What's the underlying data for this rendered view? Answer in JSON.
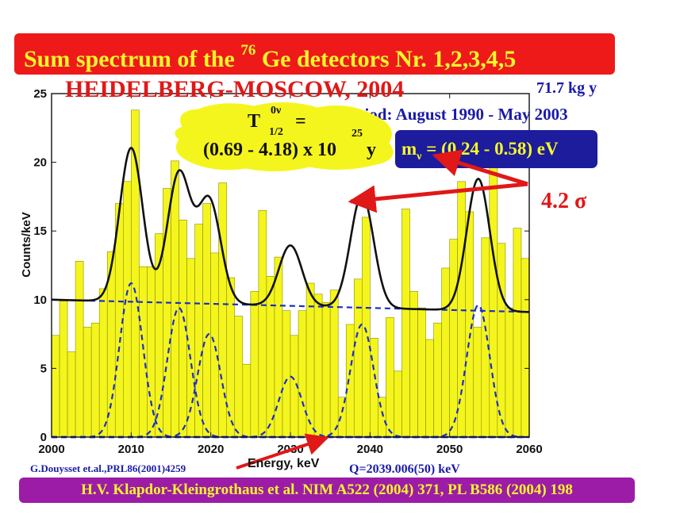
{
  "header": {
    "title_prefix": "Sum spectrum of the ",
    "isotope_mass": "76",
    "title_suffix": " Ge detectors Nr. 1,2,3,4,5",
    "experiment": "HEIDELBERG-MOSCOW, 2004",
    "exposure": "71.7 kg y",
    "period": "Period: August 1990 - May 2003"
  },
  "half_life": {
    "symbol": "T",
    "sup": "0ν",
    "sub": "1/2",
    "equals": "=",
    "range": "(0.69 - 4.18) x 10",
    "exponent": "25",
    "unit": "y"
  },
  "neutrino_mass": {
    "symbol": "m",
    "sub": "ν",
    "value": " =  (0.24 - 0.58) eV"
  },
  "significance": "4.2 σ",
  "q_value": "Q=2039.006(50) keV",
  "reference_small": "G.Douysset et.al.,PRL86(2001)4259",
  "footer": "H.V. Klapdor-Kleingrothaus et al. NIM A522 (2004) 371, PL B586 (2004) 198",
  "colors": {
    "bar_fill": "#f5f51e",
    "bar_edge": "#8c8c00",
    "fit_line": "#111111",
    "component_line": "#1a2fc8",
    "banner_red": "#ee1a1a",
    "banner_blue": "#1c1c9c",
    "banner_purple": "#9c1ca8",
    "arrow_red": "#e01818"
  },
  "chart_data": {
    "type": "bar",
    "xlabel": "Energy, keV",
    "ylabel": "Counts/keV",
    "xlim": [
      2000,
      2060
    ],
    "ylim": [
      0,
      25
    ],
    "x_ticks": [
      2000,
      2010,
      2020,
      2030,
      2040,
      2050,
      2060
    ],
    "y_ticks": [
      0,
      5,
      10,
      15,
      20,
      25
    ],
    "bin_start": 2000,
    "bin_width": 1,
    "bin_counts": [
      7.4,
      9.9,
      6.2,
      12.8,
      8.0,
      8.3,
      10.8,
      13.5,
      17.0,
      18.6,
      23.8,
      12.4,
      12.4,
      14.8,
      18.1,
      20.1,
      15.8,
      13.0,
      15.5,
      17.0,
      13.4,
      18.5,
      11.6,
      8.8,
      5.3,
      10.6,
      16.5,
      11.7,
      13.1,
      9.2,
      7.4,
      9.2,
      11.2,
      10.4,
      9.8,
      10.7,
      2.9,
      8.2,
      11.5,
      16.0,
      7.2,
      2.9,
      8.7,
      4.8,
      16.6,
      10.6,
      9.4,
      7.1,
      8.3,
      12.3,
      14.4,
      18.6,
      16.4,
      8.0,
      14.5,
      20.8,
      14.1,
      9.4,
      15.2,
      13.0
    ],
    "fit_model": {
      "background": {
        "left": 10.0,
        "right": 9.1
      },
      "peaks": [
        {
          "center": 2010.0,
          "amplitude": 11.2,
          "sigma": 1.45
        },
        {
          "center": 2016.0,
          "amplitude": 9.4,
          "sigma": 1.45
        },
        {
          "center": 2019.8,
          "amplitude": 7.5,
          "sigma": 1.45
        },
        {
          "center": 2030.0,
          "amplitude": 4.4,
          "sigma": 1.45
        },
        {
          "center": 2039.0,
          "amplitude": 8.2,
          "sigma": 1.45
        },
        {
          "center": 2053.6,
          "amplitude": 9.6,
          "sigma": 1.45
        }
      ]
    }
  }
}
